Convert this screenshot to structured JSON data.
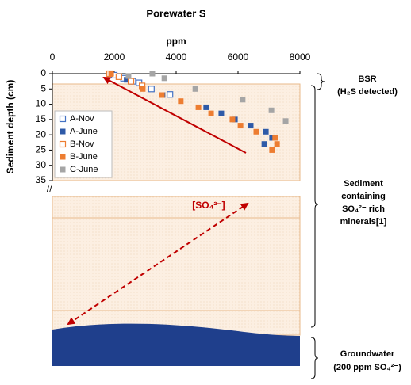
{
  "chart_data": {
    "type": "scatter",
    "title": "Porewater S",
    "xlabel": "ppm",
    "ylabel": "Sediment depth (cm)",
    "xlim": [
      0,
      8000
    ],
    "xticks": [
      0,
      2000,
      4000,
      6000,
      8000
    ],
    "ylim": [
      0,
      35
    ],
    "yticks": [
      0,
      5,
      10,
      15,
      20,
      25,
      30,
      35
    ],
    "y_inverted": true,
    "x_axis_top": true,
    "series": [
      {
        "name": "A-Nov",
        "color": "#4472c4",
        "filled": false,
        "x": [
          2000,
          2300,
          2600,
          2800,
          3200,
          3800
        ],
        "values": [
          0.5,
          1.5,
          2.5,
          3,
          5,
          6.8
        ]
      },
      {
        "name": "A-June",
        "color": "#2e5aa8",
        "filled": true,
        "x": [
          1850,
          2400,
          3560,
          4970,
          5460,
          5900,
          6410,
          6900,
          7100,
          6850
        ],
        "values": [
          0,
          2,
          7,
          11,
          13,
          15,
          17,
          19,
          21,
          23
        ]
      },
      {
        "name": "B-Nov",
        "color": "#ed7d31",
        "filled": false,
        "x": [
          1850,
          2150,
          2540,
          2900
        ],
        "values": [
          0,
          1,
          2.5,
          4
        ]
      },
      {
        "name": "B-June",
        "color": "#ed7d31",
        "filled": true,
        "x": [
          1900,
          2920,
          3540,
          4150,
          4720,
          5130,
          5820,
          6080,
          6590,
          7200,
          7260,
          7100
        ],
        "values": [
          0,
          5,
          7,
          9,
          11,
          13,
          15,
          17,
          19,
          21,
          23,
          25
        ]
      },
      {
        "name": "C-June",
        "color": "#a5a5a5",
        "filled": true,
        "x": [
          3230,
          2460,
          3620,
          4620,
          6150,
          7080,
          7540
        ],
        "values": [
          0,
          0.8,
          1.5,
          5,
          8.5,
          12,
          15.5
        ]
      }
    ],
    "annotations": {
      "bsr": "BSR",
      "h2s": "(H₂S detected)",
      "sediment": [
        "Sediment",
        "containing",
        "SO₄²⁻ rich",
        "minerals[1]"
      ],
      "so4": "[SO₄²⁻]",
      "groundwater": [
        "Groundwater",
        "(200 ppm SO₄²⁻)"
      ]
    }
  }
}
